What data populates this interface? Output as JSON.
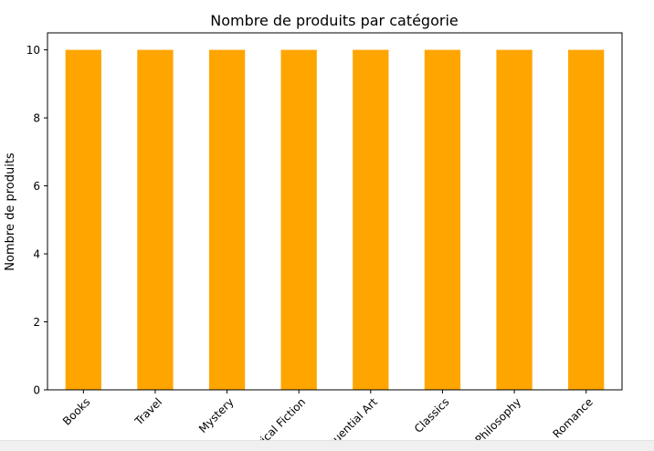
{
  "chart_data": {
    "type": "bar",
    "title": "Nombre de produits par catégorie",
    "xlabel": "",
    "ylabel": "Nombre de produits",
    "categories": [
      "Books",
      "Travel",
      "Mystery",
      "Historical Fiction",
      "Sequential Art",
      "Classics",
      "Philosophy",
      "Romance"
    ],
    "values": [
      10,
      10,
      10,
      10,
      10,
      10,
      10,
      10
    ],
    "ylim": [
      0,
      10.5
    ],
    "yticks": [
      0,
      2,
      4,
      6,
      8,
      10
    ],
    "bar_color": "#ffa500",
    "grid": false,
    "legend": "none"
  }
}
